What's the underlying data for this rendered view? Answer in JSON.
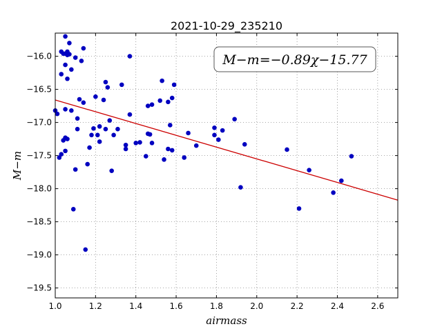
{
  "chart_data": {
    "type": "scatter",
    "title": "2021-10-29_235210",
    "xlabel": "airmass",
    "ylabel": "M−m",
    "xlim": [
      1.0,
      2.7
    ],
    "ylim": [
      -15.65,
      -19.65
    ],
    "y_inverted": true,
    "xticks": [
      1.0,
      1.2,
      1.4,
      1.6,
      1.8,
      2.0,
      2.2,
      2.4,
      2.6
    ],
    "xtick_labels": [
      "1.0",
      "1.2",
      "1.4",
      "1.6",
      "1.8",
      "2.0",
      "2.2",
      "2.4",
      "2.6"
    ],
    "yticks": [
      -16.0,
      -16.5,
      -17.0,
      -17.5,
      -18.0,
      -18.5,
      -19.0,
      -19.5
    ],
    "ytick_labels": [
      "−16.0",
      "−16.5",
      "−17.0",
      "−17.5",
      "−18.0",
      "−18.5",
      "−19.0",
      "−19.5"
    ],
    "grid": true,
    "annotation": "M−m=−0.89χ−15.77",
    "annotation_position": "top-right",
    "fit": {
      "slope": -0.89,
      "intercept": -15.77,
      "color": "#cc0000"
    },
    "marker_color": "#0000c0",
    "points": [
      {
        "x": 1.0,
        "y": -16.82
      },
      {
        "x": 1.01,
        "y": -16.87
      },
      {
        "x": 1.02,
        "y": -17.53
      },
      {
        "x": 1.03,
        "y": -17.48
      },
      {
        "x": 1.03,
        "y": -16.27
      },
      {
        "x": 1.03,
        "y": -15.93
      },
      {
        "x": 1.04,
        "y": -17.27
      },
      {
        "x": 1.04,
        "y": -15.96
      },
      {
        "x": 1.05,
        "y": -16.13
      },
      {
        "x": 1.05,
        "y": -15.96
      },
      {
        "x": 1.05,
        "y": -16.8
      },
      {
        "x": 1.05,
        "y": -17.23
      },
      {
        "x": 1.05,
        "y": -17.43
      },
      {
        "x": 1.05,
        "y": -15.7
      },
      {
        "x": 1.06,
        "y": -16.34
      },
      {
        "x": 1.06,
        "y": -15.93
      },
      {
        "x": 1.06,
        "y": -15.98
      },
      {
        "x": 1.06,
        "y": -17.25
      },
      {
        "x": 1.07,
        "y": -15.8
      },
      {
        "x": 1.07,
        "y": -15.97
      },
      {
        "x": 1.08,
        "y": -16.2
      },
      {
        "x": 1.08,
        "y": -16.82
      },
      {
        "x": 1.09,
        "y": -18.31
      },
      {
        "x": 1.1,
        "y": -16.02
      },
      {
        "x": 1.1,
        "y": -17.71
      },
      {
        "x": 1.11,
        "y": -16.94
      },
      {
        "x": 1.11,
        "y": -17.1
      },
      {
        "x": 1.12,
        "y": -16.65
      },
      {
        "x": 1.13,
        "y": -16.07
      },
      {
        "x": 1.14,
        "y": -15.88
      },
      {
        "x": 1.14,
        "y": -16.7
      },
      {
        "x": 1.15,
        "y": -18.92
      },
      {
        "x": 1.16,
        "y": -17.63
      },
      {
        "x": 1.17,
        "y": -17.38
      },
      {
        "x": 1.18,
        "y": -17.19
      },
      {
        "x": 1.19,
        "y": -17.09
      },
      {
        "x": 1.2,
        "y": -16.61
      },
      {
        "x": 1.21,
        "y": -17.19
      },
      {
        "x": 1.22,
        "y": -17.29
      },
      {
        "x": 1.22,
        "y": -17.06
      },
      {
        "x": 1.24,
        "y": -16.66
      },
      {
        "x": 1.25,
        "y": -17.1
      },
      {
        "x": 1.25,
        "y": -16.39
      },
      {
        "x": 1.26,
        "y": -16.47
      },
      {
        "x": 1.27,
        "y": -16.97
      },
      {
        "x": 1.28,
        "y": -17.73
      },
      {
        "x": 1.29,
        "y": -17.19
      },
      {
        "x": 1.31,
        "y": -17.1
      },
      {
        "x": 1.33,
        "y": -16.43
      },
      {
        "x": 1.35,
        "y": -17.34
      },
      {
        "x": 1.35,
        "y": -17.4
      },
      {
        "x": 1.37,
        "y": -16.0
      },
      {
        "x": 1.37,
        "y": -16.88
      },
      {
        "x": 1.4,
        "y": -17.31
      },
      {
        "x": 1.42,
        "y": -17.3
      },
      {
        "x": 1.45,
        "y": -17.51
      },
      {
        "x": 1.46,
        "y": -17.17
      },
      {
        "x": 1.47,
        "y": -17.18
      },
      {
        "x": 1.46,
        "y": -16.75
      },
      {
        "x": 1.48,
        "y": -16.73
      },
      {
        "x": 1.48,
        "y": -17.31
      },
      {
        "x": 1.52,
        "y": -16.67
      },
      {
        "x": 1.53,
        "y": -16.37
      },
      {
        "x": 1.54,
        "y": -17.56
      },
      {
        "x": 1.56,
        "y": -16.69
      },
      {
        "x": 1.56,
        "y": -17.4
      },
      {
        "x": 1.57,
        "y": -17.04
      },
      {
        "x": 1.58,
        "y": -17.42
      },
      {
        "x": 1.58,
        "y": -16.63
      },
      {
        "x": 1.59,
        "y": -16.43
      },
      {
        "x": 1.64,
        "y": -17.53
      },
      {
        "x": 1.66,
        "y": -17.16
      },
      {
        "x": 1.7,
        "y": -17.35
      },
      {
        "x": 1.79,
        "y": -17.08
      },
      {
        "x": 1.79,
        "y": -17.19
      },
      {
        "x": 1.81,
        "y": -17.26
      },
      {
        "x": 1.83,
        "y": -17.12
      },
      {
        "x": 1.89,
        "y": -16.95
      },
      {
        "x": 1.92,
        "y": -17.98
      },
      {
        "x": 1.94,
        "y": -17.33
      },
      {
        "x": 2.15,
        "y": -17.41
      },
      {
        "x": 2.21,
        "y": -18.3
      },
      {
        "x": 2.26,
        "y": -17.72
      },
      {
        "x": 2.38,
        "y": -18.06
      },
      {
        "x": 2.42,
        "y": -17.88
      },
      {
        "x": 2.47,
        "y": -17.51
      }
    ]
  }
}
